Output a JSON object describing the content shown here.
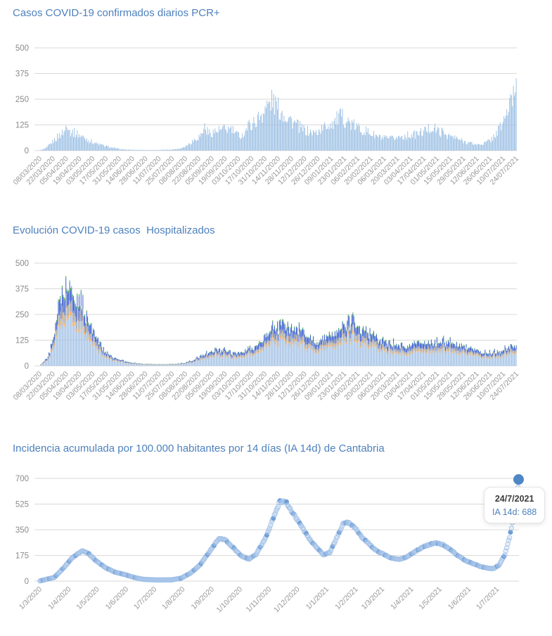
{
  "page": {
    "background": "#ffffff",
    "accent": "#4e81bd"
  },
  "chart_data": [
    {
      "id": "pcr",
      "type": "bar",
      "title": "Casos COVID-19 confirmados diarios PCR+",
      "ylim": [
        0,
        500
      ],
      "yticks": [
        0,
        125,
        250,
        375,
        500
      ],
      "grid": true,
      "bar_color": "#9dc0e4",
      "days": 504,
      "x_labels": [
        "08/03/2020",
        "22/03/2020",
        "05/04/2020",
        "19/04/2020",
        "03/05/2020",
        "17/05/2020",
        "31/05/2020",
        "14/06/2020",
        "28/06/2020",
        "11/07/2020",
        "25/07/2020",
        "08/08/2020",
        "22/08/2020",
        "05/09/2020",
        "19/09/2020",
        "03/10/2020",
        "17/10/2020",
        "31/10/2020",
        "14/11/2020",
        "28/11/2020",
        "12/12/2020",
        "26/12/2020",
        "09/01/2021",
        "23/01/2021",
        "06/02/2021",
        "20/02/2021",
        "06/03/2021",
        "20/03/2021",
        "03/04/2021",
        "17/04/2021",
        "01/05/2021",
        "15/05/2021",
        "29/05/2021",
        "12/06/2021",
        "26/06/2021",
        "10/07/2021",
        "24/07/2021"
      ],
      "keypoints": [
        [
          0,
          2
        ],
        [
          6,
          12
        ],
        [
          12,
          40
        ],
        [
          20,
          80
        ],
        [
          26,
          100
        ],
        [
          28,
          160
        ],
        [
          31,
          100
        ],
        [
          38,
          90
        ],
        [
          45,
          70
        ],
        [
          52,
          52
        ],
        [
          60,
          35
        ],
        [
          68,
          24
        ],
        [
          76,
          15
        ],
        [
          85,
          7
        ],
        [
          95,
          4
        ],
        [
          110,
          3
        ],
        [
          125,
          3
        ],
        [
          138,
          5
        ],
        [
          148,
          10
        ],
        [
          156,
          30
        ],
        [
          164,
          60
        ],
        [
          170,
          80
        ],
        [
          174,
          125
        ],
        [
          178,
          90
        ],
        [
          186,
          100
        ],
        [
          194,
          108
        ],
        [
          202,
          112
        ],
        [
          208,
          82
        ],
        [
          214,
          78
        ],
        [
          220,
          128
        ],
        [
          228,
          150
        ],
        [
          235,
          195
        ],
        [
          242,
          240
        ],
        [
          246,
          260
        ],
        [
          250,
          228
        ],
        [
          256,
          198
        ],
        [
          262,
          175
        ],
        [
          270,
          138
        ],
        [
          277,
          112
        ],
        [
          284,
          98
        ],
        [
          291,
          90
        ],
        [
          297,
          108
        ],
        [
          304,
          132
        ],
        [
          311,
          150
        ],
        [
          318,
          175
        ],
        [
          324,
          158
        ],
        [
          330,
          132
        ],
        [
          338,
          115
        ],
        [
          346,
          98
        ],
        [
          354,
          78
        ],
        [
          362,
          64
        ],
        [
          370,
          60
        ],
        [
          378,
          68
        ],
        [
          386,
          77
        ],
        [
          394,
          81
        ],
        [
          402,
          90
        ],
        [
          409,
          107
        ],
        [
          415,
          120
        ],
        [
          421,
          103
        ],
        [
          428,
          90
        ],
        [
          435,
          73
        ],
        [
          442,
          60
        ],
        [
          449,
          47
        ],
        [
          456,
          38
        ],
        [
          463,
          30
        ],
        [
          470,
          38
        ],
        [
          477,
          55
        ],
        [
          483,
          90
        ],
        [
          489,
          137
        ],
        [
          494,
          197
        ],
        [
          498,
          240
        ],
        [
          501,
          290
        ],
        [
          503,
          355
        ],
        [
          504,
          345
        ]
      ]
    },
    {
      "id": "hosp",
      "type": "stacked-bar",
      "title": "Evolución COVID-19 casos  Hospitalizados",
      "ylim": [
        0,
        500
      ],
      "yticks": [
        0,
        125,
        250,
        375,
        500
      ],
      "grid": true,
      "days": 504,
      "x_labels": [
        "08/03/2020",
        "22/03/2020",
        "05/04/2020",
        "19/04/2020",
        "03/05/2020",
        "17/05/2020",
        "31/05/2020",
        "14/06/2020",
        "28/06/2020",
        "11/07/2020",
        "25/07/2020",
        "08/08/2020",
        "22/08/2020",
        "05/09/2020",
        "19/09/2020",
        "03/10/2020",
        "17/10/2020",
        "31/10/2020",
        "14/11/2020",
        "28/11/2020",
        "12/12/2020",
        "26/12/2020",
        "09/01/2021",
        "23/01/2021",
        "06/02/2021",
        "20/02/2021",
        "06/03/2021",
        "20/03/2021",
        "03/04/2021",
        "17/04/2021",
        "01/05/2021",
        "15/05/2021",
        "29/05/2021",
        "12/06/2021",
        "26/06/2021",
        "10/07/2021",
        "24/07/2021"
      ],
      "series": [
        {
          "name": "series-lightblue",
          "color": "#a5c3e6",
          "fraction": 0.6
        },
        {
          "name": "series-orange",
          "color": "#f2a654",
          "fraction": 0.05
        },
        {
          "name": "series-gray",
          "color": "#a3a3a3",
          "fraction": 0.13
        },
        {
          "name": "series-blue",
          "color": "#2f55cf",
          "fraction": 0.19
        },
        {
          "name": "series-green",
          "color": "#35a339",
          "fraction": 0.03
        }
      ],
      "total_keypoints": [
        [
          0,
          4
        ],
        [
          8,
          40
        ],
        [
          14,
          140
        ],
        [
          20,
          320
        ],
        [
          24,
          395
        ],
        [
          28,
          385
        ],
        [
          34,
          350
        ],
        [
          40,
          330
        ],
        [
          46,
          270
        ],
        [
          52,
          215
        ],
        [
          58,
          150
        ],
        [
          64,
          105
        ],
        [
          70,
          68
        ],
        [
          78,
          40
        ],
        [
          86,
          26
        ],
        [
          95,
          18
        ],
        [
          105,
          10
        ],
        [
          118,
          7
        ],
        [
          132,
          6
        ],
        [
          145,
          9
        ],
        [
          155,
          16
        ],
        [
          163,
          30
        ],
        [
          170,
          48
        ],
        [
          177,
          60
        ],
        [
          184,
          72
        ],
        [
          191,
          78
        ],
        [
          198,
          70
        ],
        [
          205,
          62
        ],
        [
          212,
          68
        ],
        [
          219,
          80
        ],
        [
          227,
          95
        ],
        [
          235,
          125
        ],
        [
          243,
          160
        ],
        [
          250,
          190
        ],
        [
          256,
          210
        ],
        [
          262,
          195
        ],
        [
          268,
          185
        ],
        [
          275,
          165
        ],
        [
          282,
          150
        ],
        [
          289,
          130
        ],
        [
          296,
          120
        ],
        [
          303,
          135
        ],
        [
          310,
          160
        ],
        [
          317,
          185
        ],
        [
          324,
          200
        ],
        [
          331,
          215
        ],
        [
          338,
          200
        ],
        [
          345,
          175
        ],
        [
          352,
          150
        ],
        [
          359,
          130
        ],
        [
          366,
          120
        ],
        [
          373,
          112
        ],
        [
          380,
          100
        ],
        [
          387,
          100
        ],
        [
          394,
          108
        ],
        [
          401,
          118
        ],
        [
          408,
          112
        ],
        [
          415,
          112
        ],
        [
          422,
          118
        ],
        [
          429,
          125
        ],
        [
          436,
          115
        ],
        [
          443,
          105
        ],
        [
          450,
          95
        ],
        [
          457,
          85
        ],
        [
          464,
          72
        ],
        [
          471,
          68
        ],
        [
          478,
          64
        ],
        [
          485,
          72
        ],
        [
          492,
          82
        ],
        [
          498,
          92
        ],
        [
          504,
          102
        ]
      ]
    },
    {
      "id": "ia",
      "type": "scatter",
      "title": "Incidencia acumulada por 100.000 habitantes por 14 días (IA 14d) de Cantabria",
      "ylim": [
        0,
        700
      ],
      "yticks": [
        0,
        175,
        350,
        525,
        700
      ],
      "grid": true,
      "dot_fill": "rgba(185,209,238,0.30)",
      "dot_stroke": "rgba(160,192,230,0.85)",
      "dot_solid_color": "#6f9ed6",
      "days": 509,
      "x_labels": [
        "1/3/2020",
        "1/4/2020",
        "1/5/2020",
        "1/6/2020",
        "1/7/2020",
        "1/8/2020",
        "1/9/2020",
        "1/10/2020",
        "1/11/2020",
        "1/12/2020",
        "1/1/2021",
        "1/2/2021",
        "1/3/2021",
        "1/4/2021",
        "1/5/2021",
        "1/6/2021",
        "1/7/2021"
      ],
      "x_tick_days": [
        0,
        31,
        61,
        92,
        122,
        152,
        183,
        213,
        244,
        274,
        305,
        336,
        364,
        395,
        425,
        456,
        486
      ],
      "keypoints": [
        [
          0,
          2
        ],
        [
          15,
          25
        ],
        [
          25,
          90
        ],
        [
          35,
          165
        ],
        [
          45,
          205
        ],
        [
          52,
          185
        ],
        [
          60,
          135
        ],
        [
          70,
          90
        ],
        [
          80,
          60
        ],
        [
          90,
          45
        ],
        [
          100,
          25
        ],
        [
          110,
          12
        ],
        [
          125,
          8
        ],
        [
          140,
          9
        ],
        [
          150,
          20
        ],
        [
          160,
          55
        ],
        [
          170,
          110
        ],
        [
          180,
          200
        ],
        [
          190,
          290
        ],
        [
          197,
          280
        ],
        [
          205,
          230
        ],
        [
          213,
          175
        ],
        [
          222,
          150
        ],
        [
          230,
          185
        ],
        [
          240,
          300
        ],
        [
          248,
          430
        ],
        [
          255,
          545
        ],
        [
          262,
          535
        ],
        [
          270,
          450
        ],
        [
          278,
          370
        ],
        [
          286,
          290
        ],
        [
          294,
          230
        ],
        [
          301,
          180
        ],
        [
          308,
          195
        ],
        [
          315,
          290
        ],
        [
          322,
          390
        ],
        [
          328,
          400
        ],
        [
          335,
          360
        ],
        [
          342,
          300
        ],
        [
          350,
          250
        ],
        [
          358,
          205
        ],
        [
          366,
          180
        ],
        [
          374,
          155
        ],
        [
          382,
          150
        ],
        [
          390,
          165
        ],
        [
          398,
          200
        ],
        [
          406,
          230
        ],
        [
          414,
          250
        ],
        [
          420,
          262
        ],
        [
          428,
          250
        ],
        [
          436,
          215
        ],
        [
          444,
          175
        ],
        [
          452,
          140
        ],
        [
          460,
          120
        ],
        [
          468,
          100
        ],
        [
          476,
          88
        ],
        [
          482,
          85
        ],
        [
          488,
          110
        ],
        [
          494,
          180
        ],
        [
          499,
          300
        ],
        [
          503,
          430
        ],
        [
          506,
          545
        ],
        [
          509,
          688
        ]
      ],
      "highlight_point": {
        "date": "24/7/2021",
        "value": 688
      },
      "tooltip": {
        "date": "24/7/2021",
        "text": "IA 14d: 688"
      }
    }
  ]
}
